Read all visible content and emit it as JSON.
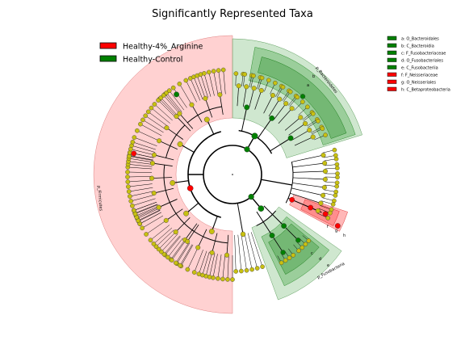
{
  "chart_data": {
    "type": "cladogram",
    "title": "Significantly Represented Taxa",
    "groups": [
      {
        "name": "Healthy-4%_Arginine",
        "color": "#ff0000"
      },
      {
        "name": "Healthy-Control",
        "color": "#008000"
      }
    ],
    "highlighted_taxa": [
      {
        "key": "a",
        "name": "O_Bacteroidales",
        "group": "Healthy-Control",
        "color": "#008000"
      },
      {
        "key": "b",
        "name": "C_Bacteroidia",
        "group": "Healthy-Control",
        "color": "#008000"
      },
      {
        "key": "c",
        "name": "F_Fusobacteriaceae",
        "group": "Healthy-Control",
        "color": "#008000"
      },
      {
        "key": "d",
        "name": "O_Fusobacteriales",
        "group": "Healthy-Control",
        "color": "#008000"
      },
      {
        "key": "e",
        "name": "C_Fusobacteriia",
        "group": "Healthy-Control",
        "color": "#008000"
      },
      {
        "key": "f",
        "name": "F_Neisseriaceae",
        "group": "Healthy-4%_Arginine",
        "color": "#ff0000"
      },
      {
        "key": "g",
        "name": "O_Neisseriales",
        "group": "Healthy-4%_Arginine",
        "color": "#ff0000"
      },
      {
        "key": "h",
        "name": "C_Betaproteobacteria",
        "group": "Healthy-4%_Arginine",
        "color": "#ff0000"
      }
    ],
    "phylum_labels": [
      "p_Bacteroidetes",
      "p_Fusobacteria",
      "p_Firmicutes"
    ],
    "clade_letters": [
      "a",
      "b",
      "c",
      "d",
      "e",
      "f",
      "g",
      "h"
    ],
    "node_colors": {
      "neutral": "#c8c011",
      "control": "#008000",
      "arginine": "#ff0000"
    }
  }
}
